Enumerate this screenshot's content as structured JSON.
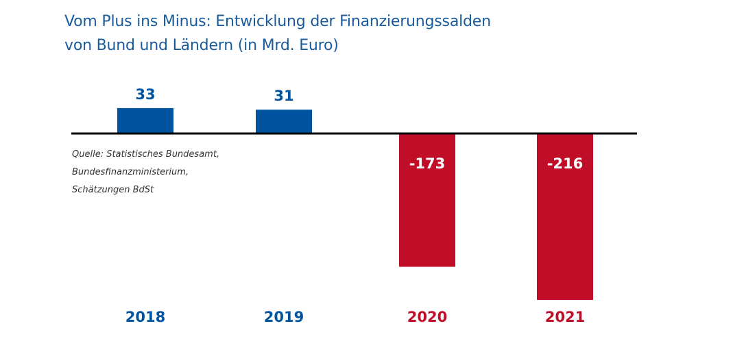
{
  "title": {
    "line1": "Vom Plus ins Minus: Entwicklung der Finanzierungssalden",
    "line2": "von Bund und Ländern (in Mrd. Euro)"
  },
  "source": {
    "line1": "Quelle: Statistisches Bundesamt,",
    "line2": "Bundesfinanzministerium,",
    "line3": "Schätzungen BdSt"
  },
  "colors": {
    "positive": "#00549f",
    "negative": "#c00d28",
    "title": "#1c5b9b",
    "axis": "#000000",
    "negative_label": "#ffffff"
  },
  "chart_data": {
    "type": "bar",
    "title": "Vom Plus ins Minus: Entwicklung der Finanzierungssalden von Bund und Ländern (in Mrd. Euro)",
    "categories": [
      "2018",
      "2019",
      "2020",
      "2021"
    ],
    "values": [
      33,
      31,
      -173,
      -216
    ],
    "labels": [
      "33",
      "31",
      "-173",
      "-216"
    ],
    "ylim": [
      -216,
      33
    ],
    "xlabel": "",
    "ylabel": "",
    "grid": false,
    "legend": "none"
  }
}
